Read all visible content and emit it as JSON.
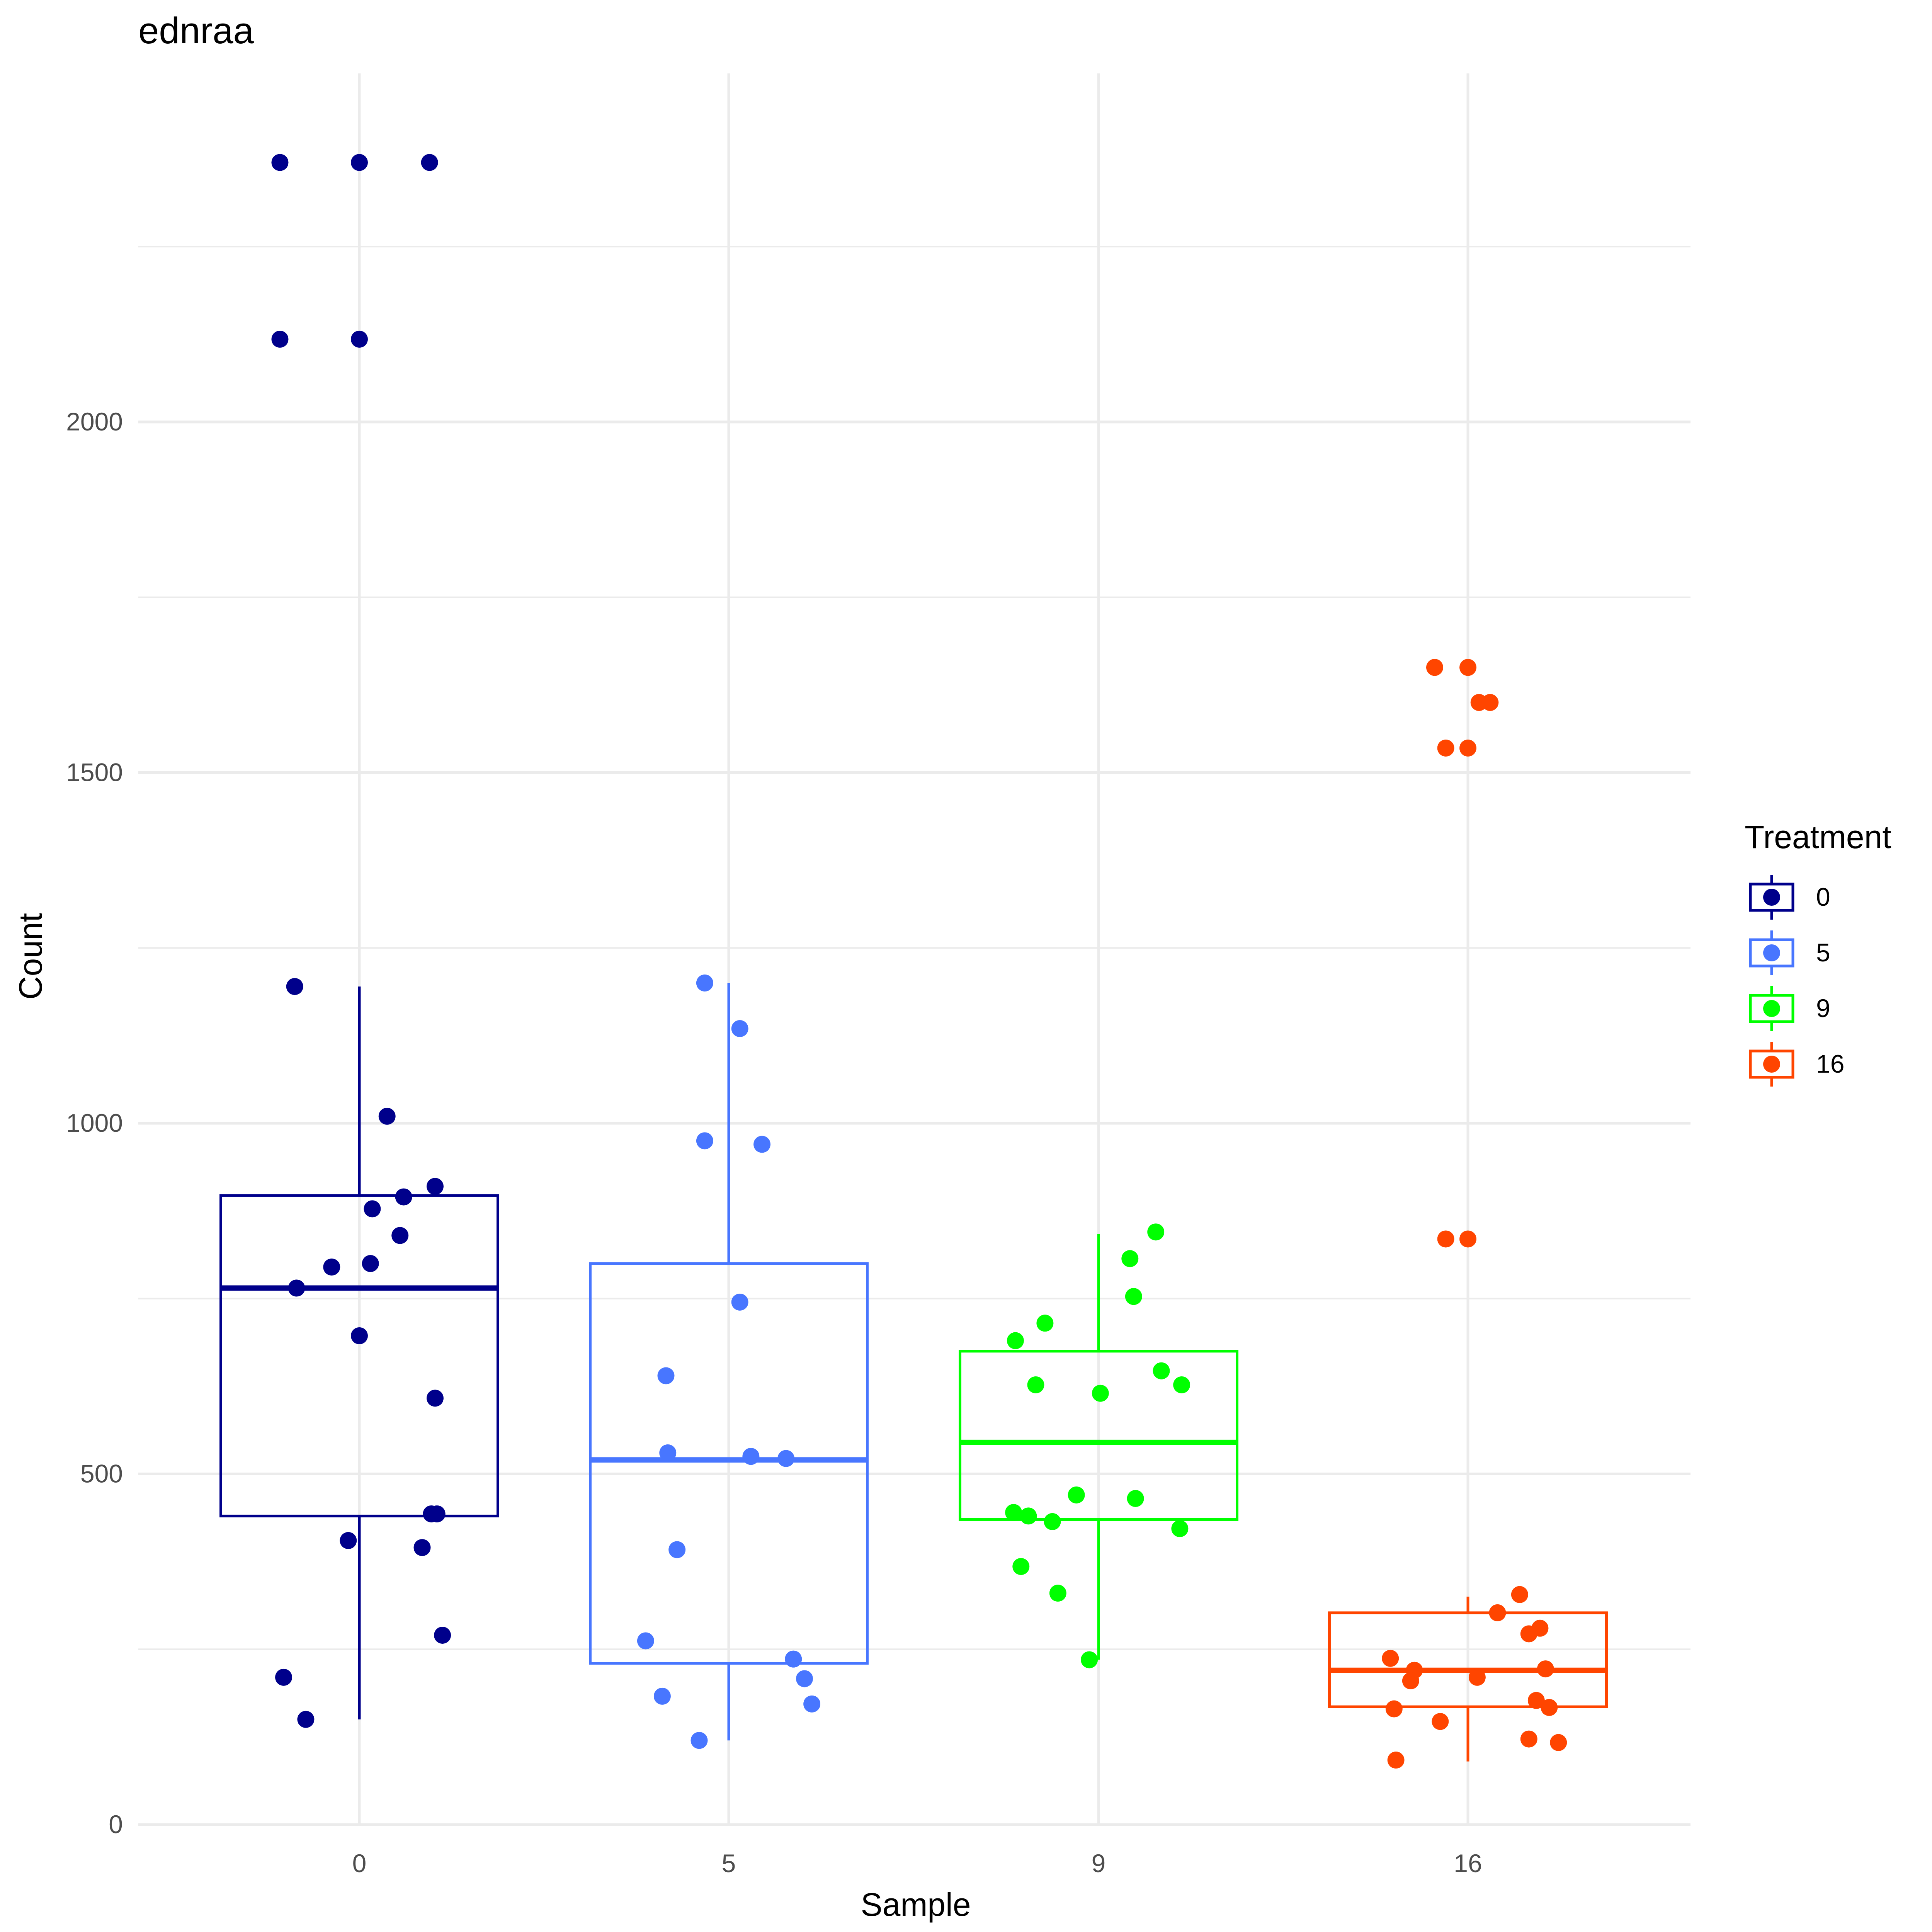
{
  "chart_data": {
    "type": "box",
    "title": "ednraa",
    "xlabel": "Sample",
    "ylabel": "Count",
    "categories": [
      "0",
      "5",
      "9",
      "16"
    ],
    "y_ticks": [
      "0",
      "500",
      "1000",
      "1500",
      "2000"
    ],
    "ylim": [
      0,
      2400
    ],
    "grid": true,
    "legend": {
      "title": "Treatment",
      "placement": "right",
      "entries": [
        "0",
        "5",
        "9",
        "16"
      ]
    },
    "colors": [
      "#00008B",
      "#4876FF",
      "#00FF00",
      "#FF4500"
    ],
    "series": [
      {
        "name": "0",
        "box": {
          "lower_whisker": 150,
          "q1": 440,
          "median": 765,
          "q3": 897,
          "upper_whisker": 1195
        },
        "points": [
          [
            -0.43,
            2370
          ],
          [
            0.0,
            2370
          ],
          [
            0.38,
            2370
          ],
          [
            -0.43,
            2118
          ],
          [
            0.0,
            2118
          ],
          [
            -0.35,
            1195
          ],
          [
            0.15,
            1010
          ],
          [
            0.41,
            910
          ],
          [
            0.24,
            895
          ],
          [
            0.07,
            878
          ],
          [
            0.22,
            840
          ],
          [
            0.06,
            800
          ],
          [
            -0.15,
            795
          ],
          [
            -0.34,
            765
          ],
          [
            0.0,
            697
          ],
          [
            0.41,
            608
          ],
          [
            0.39,
            443
          ],
          [
            0.42,
            443
          ],
          [
            -0.06,
            405
          ],
          [
            0.34,
            395
          ],
          [
            0.45,
            270
          ],
          [
            -0.41,
            210
          ],
          [
            -0.29,
            150
          ]
        ]
      },
      {
        "name": "5",
        "box": {
          "lower_whisker": 120,
          "q1": 230,
          "median": 520,
          "q3": 800,
          "upper_whisker": 1200
        },
        "points": [
          [
            -0.13,
            1200
          ],
          [
            0.06,
            1135
          ],
          [
            -0.13,
            975
          ],
          [
            0.18,
            970
          ],
          [
            0.06,
            745
          ],
          [
            -0.34,
            640
          ],
          [
            -0.33,
            530
          ],
          [
            0.12,
            525
          ],
          [
            0.31,
            522
          ],
          [
            -0.28,
            392
          ],
          [
            -0.45,
            262
          ],
          [
            0.35,
            236
          ],
          [
            0.41,
            208
          ],
          [
            -0.36,
            183
          ],
          [
            0.45,
            172
          ],
          [
            -0.16,
            120
          ]
        ]
      },
      {
        "name": "9",
        "box": {
          "lower_whisker": 235,
          "q1": 435,
          "median": 545,
          "q3": 675,
          "upper_whisker": 842
        },
        "points": [
          [
            0.31,
            845
          ],
          [
            0.17,
            807
          ],
          [
            0.19,
            753
          ],
          [
            -0.29,
            715
          ],
          [
            -0.45,
            690
          ],
          [
            0.34,
            647
          ],
          [
            -0.34,
            627
          ],
          [
            0.45,
            627
          ],
          [
            0.01,
            615
          ],
          [
            -0.12,
            470
          ],
          [
            0.2,
            465
          ],
          [
            -0.46,
            445
          ],
          [
            -0.38,
            440
          ],
          [
            -0.25,
            432
          ],
          [
            0.44,
            422
          ],
          [
            -0.42,
            368
          ],
          [
            -0.22,
            330
          ],
          [
            -0.05,
            235
          ]
        ]
      },
      {
        "name": "16",
        "box": {
          "lower_whisker": 90,
          "q1": 168,
          "median": 220,
          "q3": 302,
          "upper_whisker": 325
        },
        "points": [
          [
            -0.18,
            1650
          ],
          [
            0.0,
            1650
          ],
          [
            0.06,
            1600
          ],
          [
            0.12,
            1600
          ],
          [
            -0.12,
            1535
          ],
          [
            0.0,
            1535
          ],
          [
            -0.12,
            835
          ],
          [
            0.0,
            835
          ],
          [
            0.28,
            328
          ],
          [
            0.16,
            302
          ],
          [
            0.39,
            280
          ],
          [
            0.33,
            272
          ],
          [
            -0.42,
            237
          ],
          [
            -0.29,
            220
          ],
          [
            0.42,
            222
          ],
          [
            0.05,
            210
          ],
          [
            -0.31,
            205
          ],
          [
            0.37,
            177
          ],
          [
            0.44,
            167
          ],
          [
            -0.4,
            165
          ],
          [
            -0.15,
            147
          ],
          [
            0.33,
            122
          ],
          [
            0.49,
            117
          ],
          [
            -0.39,
            92
          ]
        ]
      }
    ]
  }
}
